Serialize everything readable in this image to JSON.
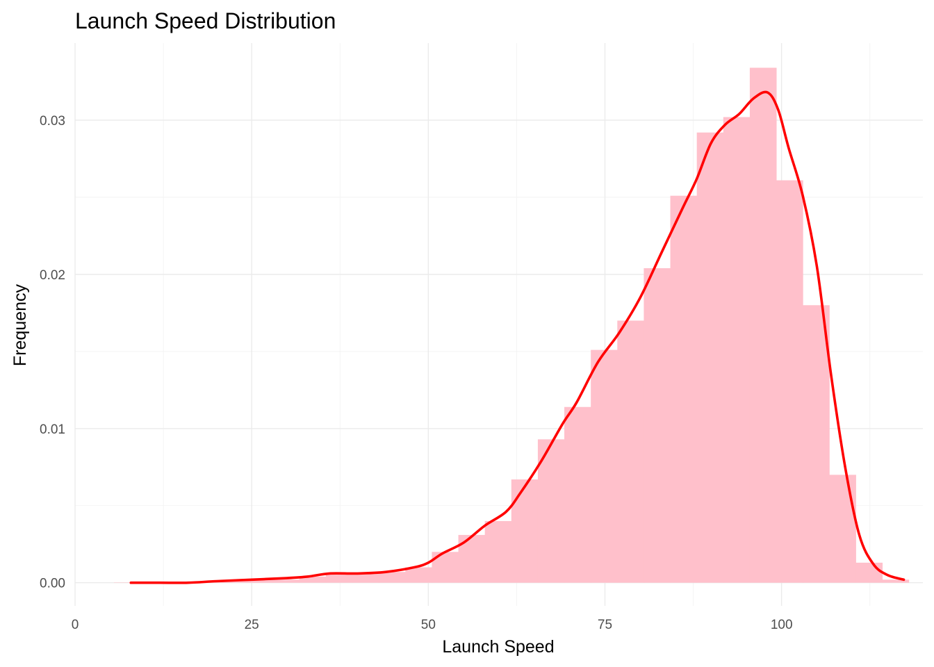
{
  "chart_data": {
    "type": "bar",
    "title": "Launch Speed Distribution",
    "xlabel": "Launch Speed",
    "ylabel": "Frequency",
    "xlim": [
      0,
      120
    ],
    "ylim": [
      -0.0015,
      0.035
    ],
    "x_ticks": [
      0,
      25,
      50,
      75,
      100
    ],
    "x_tick_labels": [
      "0",
      "25",
      "50",
      "75",
      "100"
    ],
    "y_ticks": [
      0.0,
      0.01,
      0.02,
      0.03
    ],
    "y_tick_labels": [
      "0.00",
      "0.01",
      "0.02",
      "0.03"
    ],
    "grid": true,
    "legend": "none",
    "bin_width": 3.75,
    "bins": [
      {
        "x0": 5.5,
        "x1": 9.25,
        "value": 2e-05
      },
      {
        "x0": 9.25,
        "x1": 13.0,
        "value": 3e-05
      },
      {
        "x0": 13.0,
        "x1": 16.75,
        "value": 3e-05
      },
      {
        "x0": 16.75,
        "x1": 20.5,
        "value": 4e-05
      },
      {
        "x0": 20.5,
        "x1": 24.25,
        "value": 0.0001
      },
      {
        "x0": 24.25,
        "x1": 28.0,
        "value": 0.0002
      },
      {
        "x0": 28.0,
        "x1": 31.75,
        "value": 0.0002
      },
      {
        "x0": 31.75,
        "x1": 35.5,
        "value": 0.0004
      },
      {
        "x0": 35.5,
        "x1": 39.25,
        "value": 0.0006
      },
      {
        "x0": 39.25,
        "x1": 43.0,
        "value": 0.0006
      },
      {
        "x0": 43.0,
        "x1": 46.75,
        "value": 0.0007
      },
      {
        "x0": 46.75,
        "x1": 50.5,
        "value": 0.001
      },
      {
        "x0": 50.5,
        "x1": 54.25,
        "value": 0.002
      },
      {
        "x0": 54.25,
        "x1": 58.0,
        "value": 0.0031
      },
      {
        "x0": 58.0,
        "x1": 61.75,
        "value": 0.004
      },
      {
        "x0": 61.75,
        "x1": 65.5,
        "value": 0.0067
      },
      {
        "x0": 65.5,
        "x1": 69.25,
        "value": 0.0093
      },
      {
        "x0": 69.25,
        "x1": 73.0,
        "value": 0.0114
      },
      {
        "x0": 73.0,
        "x1": 76.75,
        "value": 0.0151
      },
      {
        "x0": 76.75,
        "x1": 80.5,
        "value": 0.017
      },
      {
        "x0": 80.5,
        "x1": 84.25,
        "value": 0.0204
      },
      {
        "x0": 84.25,
        "x1": 88.0,
        "value": 0.0251
      },
      {
        "x0": 88.0,
        "x1": 91.75,
        "value": 0.0292
      },
      {
        "x0": 91.75,
        "x1": 95.5,
        "value": 0.0302
      },
      {
        "x0": 95.5,
        "x1": 99.25,
        "value": 0.0334
      },
      {
        "x0": 99.25,
        "x1": 103.0,
        "value": 0.0261
      },
      {
        "x0": 103.0,
        "x1": 106.75,
        "value": 0.018
      },
      {
        "x0": 106.75,
        "x1": 110.5,
        "value": 0.007
      },
      {
        "x0": 110.5,
        "x1": 114.25,
        "value": 0.0013
      },
      {
        "x0": 114.25,
        "x1": 118.0,
        "value": 0.0002
      }
    ],
    "density": {
      "x": [
        7.9,
        12,
        16,
        20,
        25,
        30,
        33,
        36,
        40,
        44,
        48,
        50,
        52,
        55,
        58,
        61,
        63,
        66,
        69,
        71,
        74,
        77,
        80,
        83,
        86,
        88,
        90,
        92,
        94,
        96,
        98,
        99.5,
        101,
        103,
        105,
        107,
        109,
        111,
        113,
        115,
        117.3
      ],
      "y": [
        0.0,
        0.0,
        0.0,
        0.0001,
        0.0002,
        0.0003,
        0.0004,
        0.0006,
        0.0006,
        0.0007,
        0.001,
        0.0013,
        0.0019,
        0.0026,
        0.0037,
        0.0046,
        0.0058,
        0.0079,
        0.0103,
        0.0117,
        0.0143,
        0.0162,
        0.0185,
        0.0214,
        0.0243,
        0.0262,
        0.0285,
        0.0297,
        0.0304,
        0.0314,
        0.0318,
        0.0307,
        0.0282,
        0.0251,
        0.0205,
        0.0135,
        0.0075,
        0.0031,
        0.0012,
        0.0005,
        0.0002
      ]
    },
    "bar_color": "#ffc0cb",
    "line_color": "#ff0000"
  }
}
